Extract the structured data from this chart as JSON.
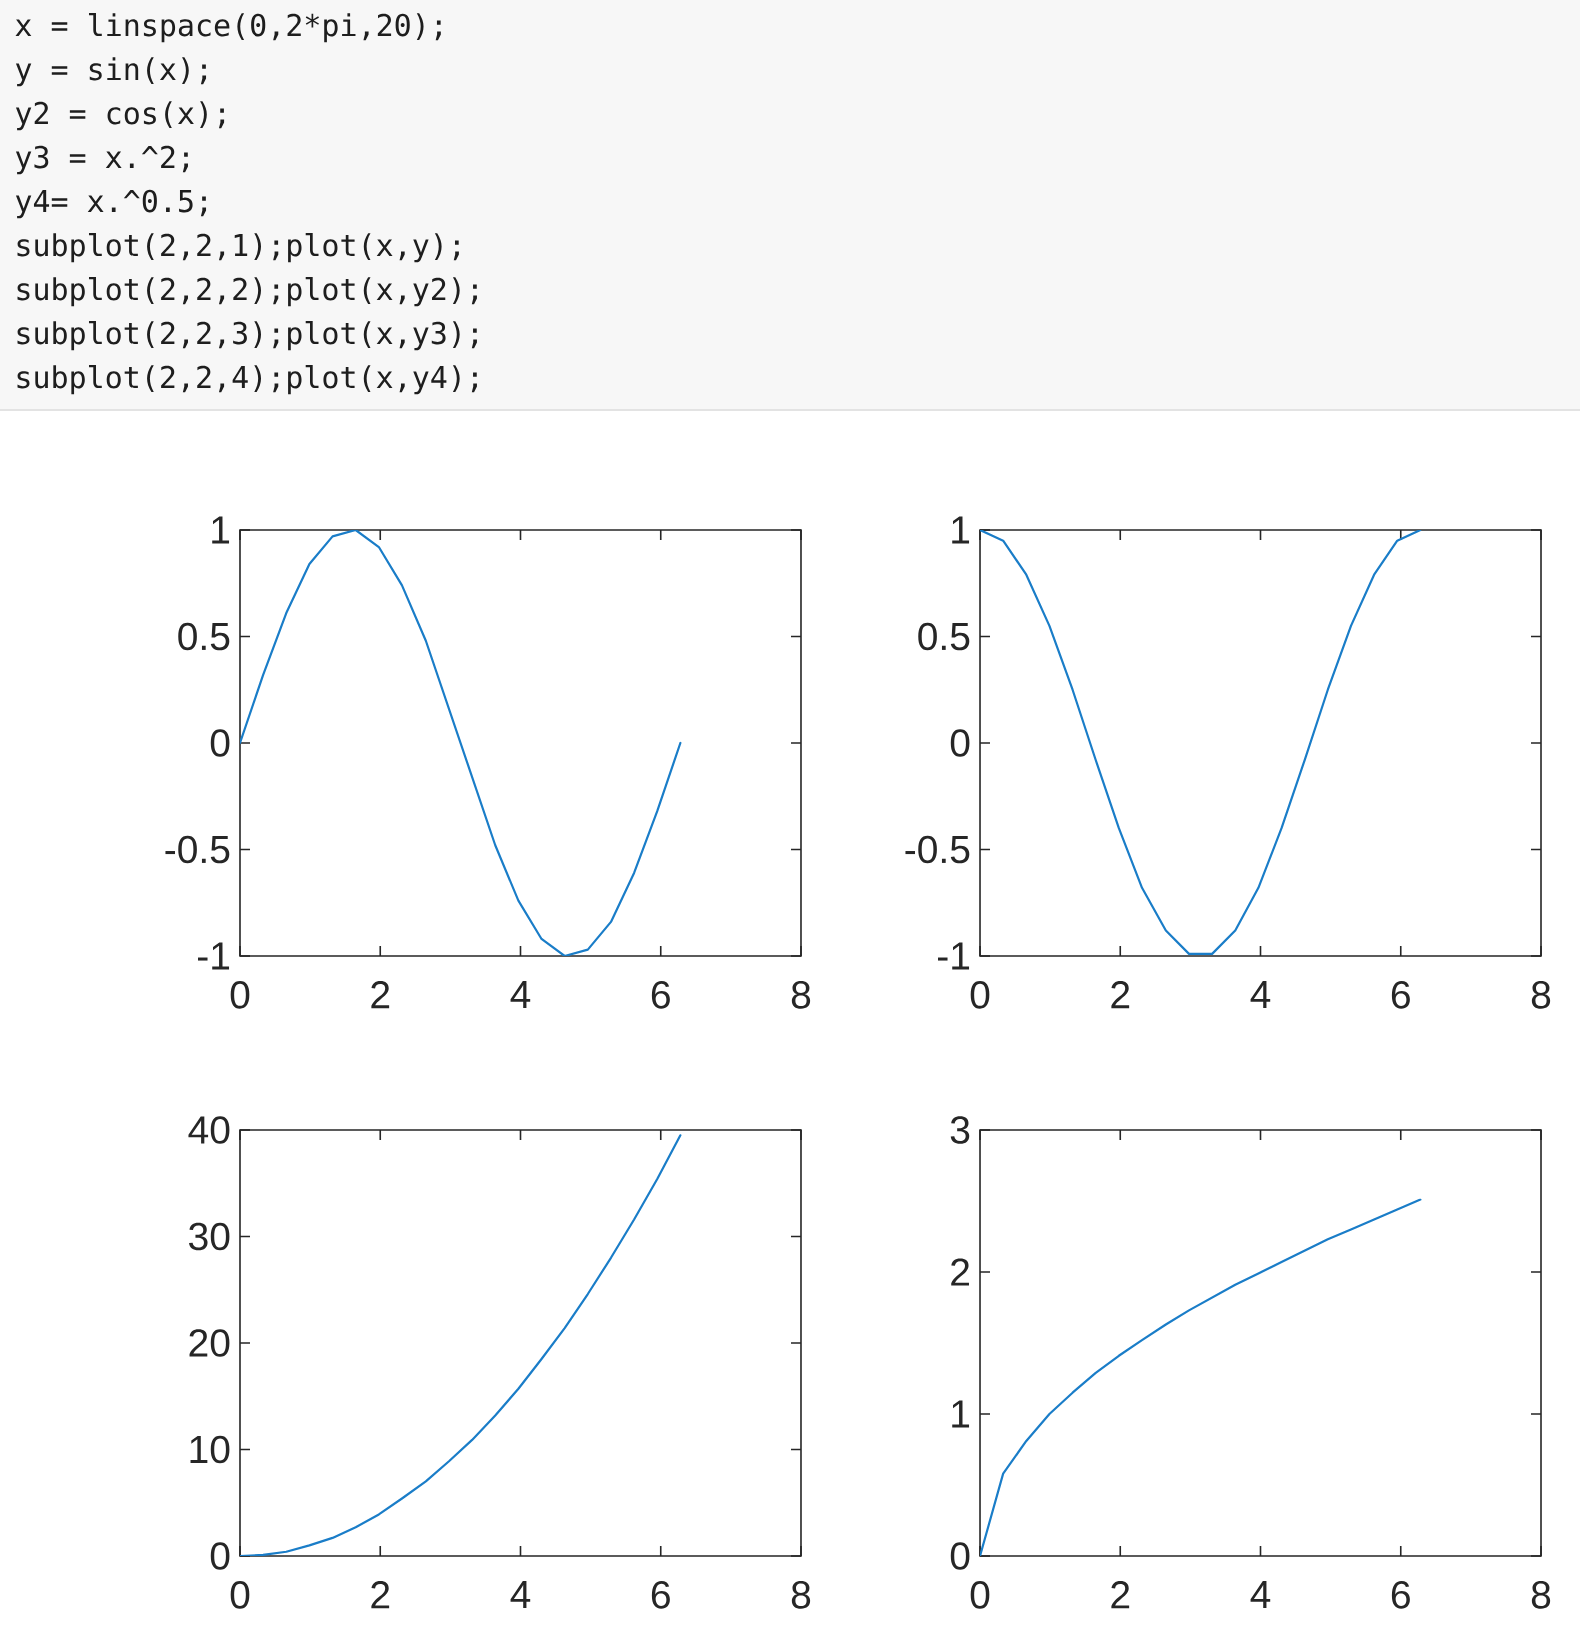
{
  "chart_data": [
    {
      "type": "other",
      "annotations": [
        "x = linspace(0,2*pi,20);",
        "y = sin(x);",
        "y2 = cos(x);",
        "y3 = x.^2;",
        "y4= x.^0.5;",
        "subplot(2,2,1);plot(x,y);",
        "subplot(2,2,2);plot(x,y2);",
        "subplot(2,2,3);plot(x,y3);",
        "subplot(2,2,4);plot(x,y4);"
      ]
    },
    {
      "type": "line",
      "x": [
        0,
        0.33,
        0.66,
        0.99,
        1.32,
        1.65,
        1.98,
        2.31,
        2.65,
        2.98,
        3.31,
        3.64,
        3.97,
        4.3,
        4.63,
        4.96,
        5.29,
        5.62,
        5.95,
        6.28
      ],
      "series": [
        {
          "color": "#1a7dc8",
          "values": [
            0,
            0.32,
            0.61,
            0.84,
            0.97,
            1.0,
            0.92,
            0.74,
            0.48,
            0.16,
            -0.16,
            -0.48,
            -0.74,
            -0.92,
            -1.0,
            -0.97,
            -0.84,
            -0.61,
            -0.32,
            0
          ]
        }
      ],
      "xlim": [
        0,
        8
      ],
      "ylim": [
        -1,
        1
      ],
      "xticks": [
        0,
        2,
        4,
        6,
        8
      ],
      "yticks": [
        -1,
        -0.5,
        0,
        0.5,
        1
      ]
    },
    {
      "type": "line",
      "x": [
        0,
        0.33,
        0.66,
        0.99,
        1.32,
        1.65,
        1.98,
        2.31,
        2.65,
        2.98,
        3.31,
        3.64,
        3.97,
        4.3,
        4.63,
        4.96,
        5.29,
        5.62,
        5.95,
        6.28
      ],
      "series": [
        {
          "color": "#1a7dc8",
          "values": [
            1,
            0.95,
            0.79,
            0.55,
            0.25,
            -0.08,
            -0.4,
            -0.68,
            -0.88,
            -0.99,
            -0.99,
            -0.88,
            -0.68,
            -0.4,
            -0.08,
            0.25,
            0.55,
            0.79,
            0.95,
            1
          ]
        }
      ],
      "xlim": [
        0,
        8
      ],
      "ylim": [
        -1,
        1
      ],
      "xticks": [
        0,
        2,
        4,
        6,
        8
      ],
      "yticks": [
        -1,
        -0.5,
        0,
        0.5,
        1
      ]
    },
    {
      "type": "line",
      "x": [
        0,
        0.33,
        0.66,
        0.99,
        1.32,
        1.65,
        1.98,
        2.31,
        2.65,
        2.98,
        3.31,
        3.64,
        3.97,
        4.3,
        4.63,
        4.96,
        5.29,
        5.62,
        5.95,
        6.28
      ],
      "series": [
        {
          "color": "#1a7dc8",
          "values": [
            0,
            0.1,
            0.4,
            1.0,
            1.7,
            2.7,
            3.9,
            5.4,
            7.0,
            8.9,
            10.9,
            13.2,
            15.7,
            18.5,
            21.4,
            24.6,
            28.0,
            31.6,
            35.4,
            39.5
          ]
        }
      ],
      "xlim": [
        0,
        8
      ],
      "ylim": [
        0,
        40
      ],
      "xticks": [
        0,
        2,
        4,
        6,
        8
      ],
      "yticks": [
        0,
        10,
        20,
        30,
        40
      ]
    },
    {
      "type": "line",
      "x": [
        0,
        0.33,
        0.66,
        0.99,
        1.32,
        1.65,
        1.98,
        2.31,
        2.65,
        2.98,
        3.31,
        3.64,
        3.97,
        4.3,
        4.63,
        4.96,
        5.29,
        5.62,
        5.95,
        6.28
      ],
      "series": [
        {
          "color": "#1a7dc8",
          "values": [
            0,
            0.58,
            0.81,
            1.0,
            1.15,
            1.29,
            1.41,
            1.52,
            1.63,
            1.73,
            1.82,
            1.91,
            1.99,
            2.07,
            2.15,
            2.23,
            2.3,
            2.37,
            2.44,
            2.51
          ]
        }
      ],
      "xlim": [
        0,
        8
      ],
      "ylim": [
        0,
        3
      ],
      "xticks": [
        0,
        2,
        4,
        6,
        8
      ],
      "yticks": [
        0,
        1,
        2,
        3
      ]
    }
  ]
}
